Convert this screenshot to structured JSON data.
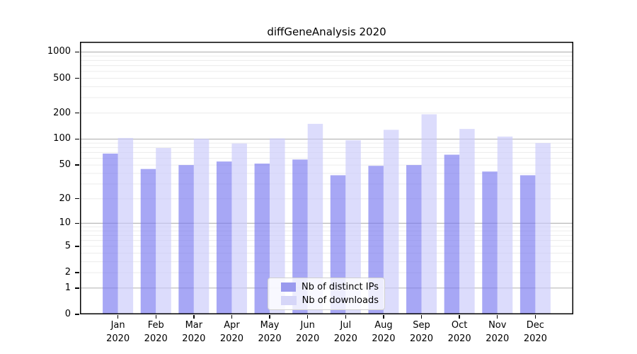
{
  "chart_data": {
    "type": "bar",
    "title": "diffGeneAnalysis 2020",
    "categories": [
      "Jan",
      "Feb",
      "Mar",
      "Apr",
      "May",
      "Jun",
      "Jul",
      "Aug",
      "Sep",
      "Oct",
      "Nov",
      "Dec"
    ],
    "x_year": "2020",
    "series": [
      {
        "name": "Nb of distinct IPs",
        "values": [
          68,
          45,
          50,
          55,
          52,
          58,
          38,
          49,
          50,
          66,
          42,
          38
        ],
        "bar_color": "#7878ef",
        "legend_color": "#9a9aee"
      },
      {
        "name": "Nb of downloads",
        "values": [
          103,
          79,
          101,
          89,
          102,
          150,
          97,
          128,
          193,
          131,
          107,
          90
        ],
        "bar_color": "#c9c9fa",
        "legend_color": "#d6d6f8"
      }
    ],
    "yscale": "log1p",
    "yticks": [
      0,
      1,
      2,
      5,
      10,
      20,
      50,
      100,
      200,
      500,
      1000
    ],
    "ylim": [
      0,
      1310
    ],
    "grid": {
      "major_color": "#b9b9b9",
      "minor_color": "#ececec",
      "major_at": [
        1,
        10,
        100,
        1000
      ]
    },
    "legend": {
      "position": "lower center"
    },
    "spine_color": "#000000"
  }
}
